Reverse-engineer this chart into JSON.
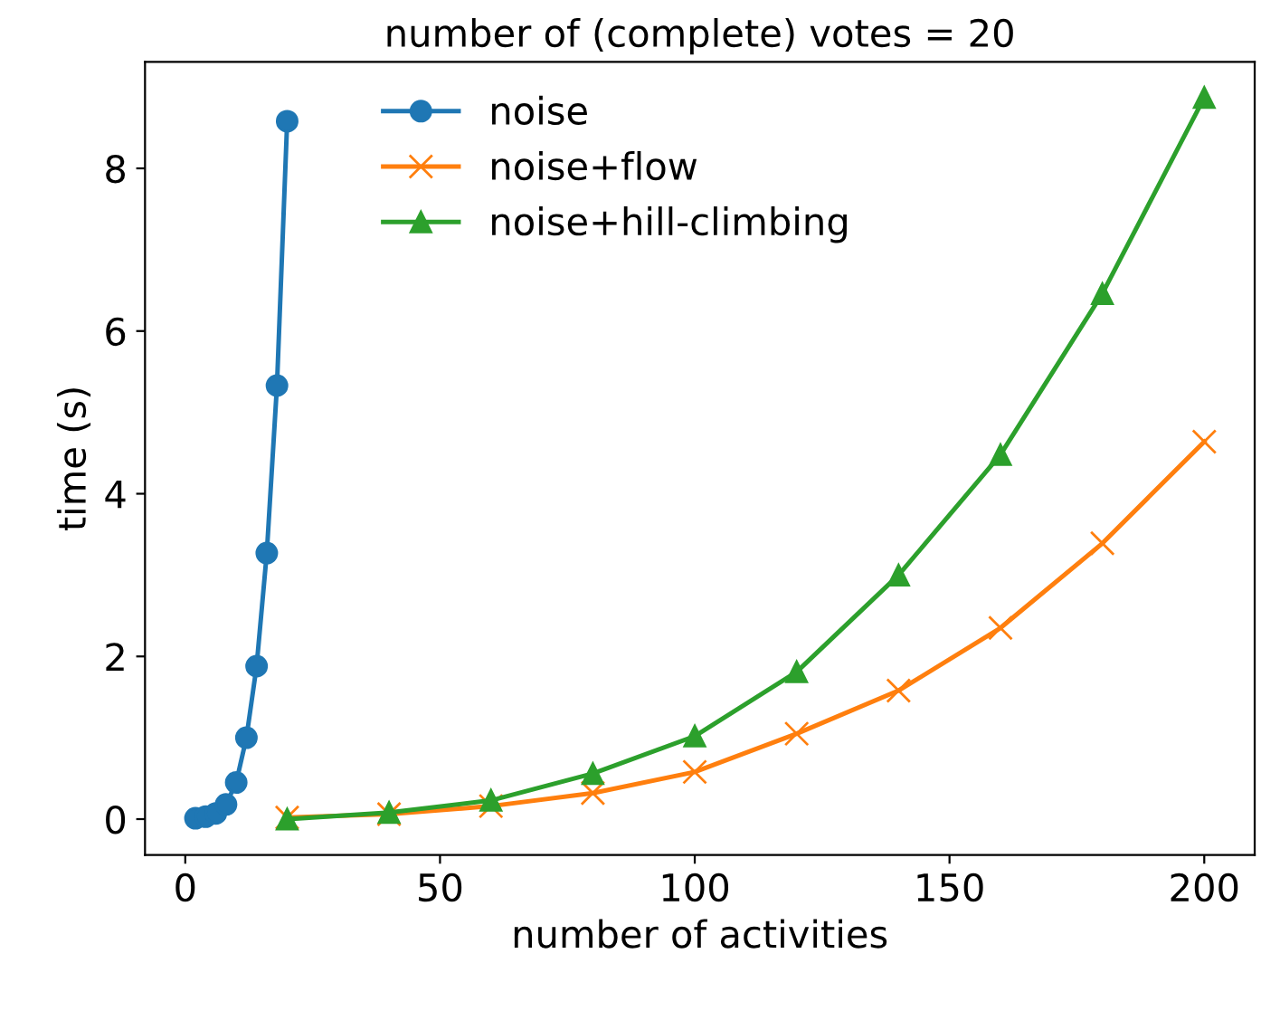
{
  "chart_data": {
    "type": "line",
    "title": "number of (complete) votes = 20",
    "xlabel": "number of activities",
    "ylabel": "time (s)",
    "series": [
      {
        "name": "noise",
        "color": "#1f77b4",
        "marker": "circle",
        "x": [
          2,
          4,
          6,
          8,
          10,
          12,
          14,
          16,
          18,
          20
        ],
        "values": [
          0.01,
          0.03,
          0.07,
          0.18,
          0.45,
          1.0,
          1.88,
          3.27,
          5.33,
          8.58
        ]
      },
      {
        "name": "noise+flow",
        "color": "#ff7f0e",
        "marker": "cross",
        "x": [
          20,
          40,
          60,
          80,
          100,
          120,
          140,
          160,
          180,
          200
        ],
        "values": [
          0.02,
          0.06,
          0.16,
          0.32,
          0.58,
          1.05,
          1.58,
          2.35,
          3.39,
          4.64
        ]
      },
      {
        "name": "noise+hill-climbing",
        "color": "#2ca02c",
        "marker": "triangle",
        "x": [
          20,
          40,
          60,
          80,
          100,
          120,
          140,
          160,
          180,
          200
        ],
        "values": [
          0.0,
          0.08,
          0.23,
          0.56,
          1.02,
          1.81,
          3.0,
          4.48,
          6.46,
          8.87
        ]
      }
    ],
    "xlim": [
      -7.9,
      209.9
    ],
    "xticks": [
      0,
      50,
      100,
      150,
      200
    ],
    "ylim": [
      -0.44,
      9.31
    ],
    "yticks": [
      0,
      2,
      4,
      6,
      8
    ],
    "grid": false,
    "legend": "top"
  }
}
